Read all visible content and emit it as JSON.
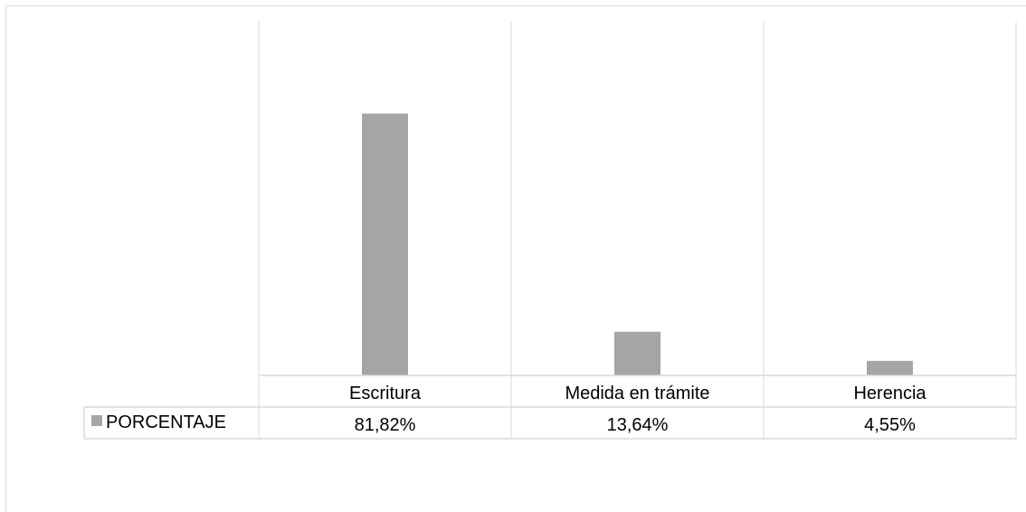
{
  "chart_data": {
    "type": "bar",
    "categories": [
      "Escritura",
      "Medida en trámite",
      "Herencia"
    ],
    "series": [
      {
        "name": "PORCENTAJE",
        "values": [
          81.82,
          13.64,
          4.55
        ],
        "labels": [
          "81,82%",
          "13,64%",
          "4,55%"
        ],
        "color": "#a5a5a5"
      }
    ],
    "ylim": [
      0,
      100
    ],
    "grid": false,
    "data_table": true,
    "title": "",
    "xlabel": "",
    "ylabel": ""
  },
  "colors": {
    "bar": "#a5a5a5",
    "gridline": "#d9d9d9"
  }
}
